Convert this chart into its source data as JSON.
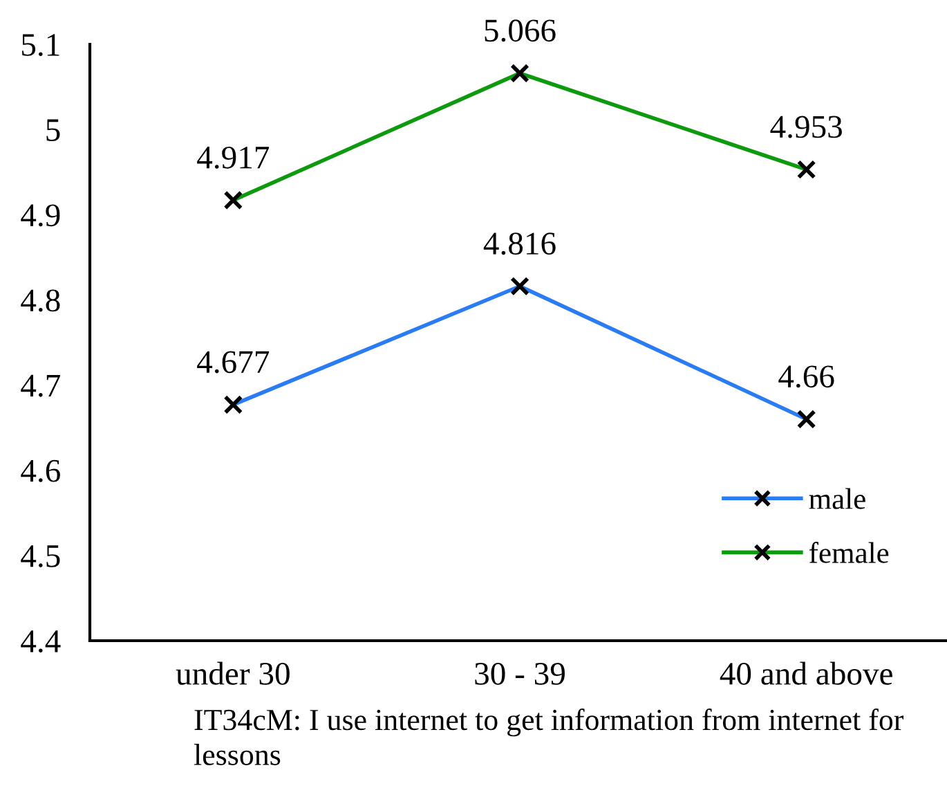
{
  "chart_data": {
    "type": "line",
    "categories": [
      "under 30",
      "30 - 39",
      "40 and above"
    ],
    "series": [
      {
        "name": "male",
        "color": "#2a7cf5",
        "values": [
          4.677,
          4.816,
          4.66
        ]
      },
      {
        "name": "female",
        "color": "#0e9a0e",
        "values": [
          4.917,
          5.066,
          4.953
        ]
      }
    ],
    "ylim": [
      4.4,
      5.1
    ],
    "yticks": [
      4.4,
      4.5,
      4.6,
      4.7,
      4.8,
      4.9,
      {
        "value": 5.0,
        "label": "5"
      },
      5.1
    ],
    "marker": "cross",
    "line_style": "solid",
    "data_labels": true,
    "legend": "bottom right",
    "annotations": [
      "IT34cM: I use internet to get information from internet for lessons"
    ]
  }
}
